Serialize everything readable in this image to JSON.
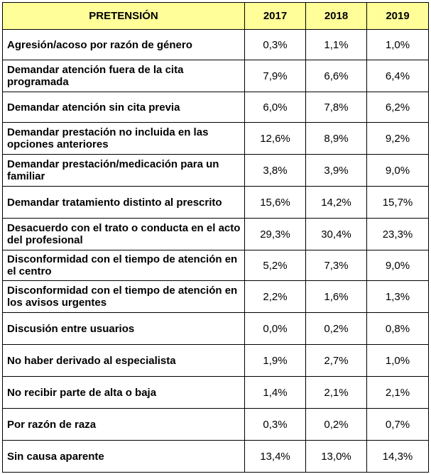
{
  "table": {
    "headers": [
      "PRETENSIÓN",
      "2017",
      "2018",
      "2019"
    ],
    "rows": [
      {
        "pretension": "Agresión/acoso por razón de género",
        "y2017": "0,3%",
        "y2018": "1,1%",
        "y2019": "1,0%"
      },
      {
        "pretension": "Demandar atención fuera de la cita programada",
        "y2017": "7,9%",
        "y2018": "6,6%",
        "y2019": "6,4%"
      },
      {
        "pretension": "Demandar atención sin cita previa",
        "y2017": "6,0%",
        "y2018": "7,8%",
        "y2019": "6,2%"
      },
      {
        "pretension": "Demandar prestación no incluida en las opciones anteriores",
        "y2017": "12,6%",
        "y2018": "8,9%",
        "y2019": "9,2%"
      },
      {
        "pretension": "Demandar prestación/medicación para un familiar",
        "y2017": "3,8%",
        "y2018": "3,9%",
        "y2019": "9,0%"
      },
      {
        "pretension": "Demandar tratamiento distinto al prescrito",
        "y2017": "15,6%",
        "y2018": "14,2%",
        "y2019": "15,7%"
      },
      {
        "pretension": "Desacuerdo con el trato o conducta en el acto del profesional",
        "y2017": "29,3%",
        "y2018": "30,4%",
        "y2019": "23,3%"
      },
      {
        "pretension": "Disconformidad con el tiempo de atención en el centro",
        "y2017": "5,2%",
        "y2018": "7,3%",
        "y2019": "9,0%"
      },
      {
        "pretension": "Disconformidad con el tiempo de atención en los avisos urgentes",
        "y2017": "2,2%",
        "y2018": "1,6%",
        "y2019": "1,3%"
      },
      {
        "pretension": "Discusión entre usuarios",
        "y2017": "0,0%",
        "y2018": "0,2%",
        "y2019": "0,8%"
      },
      {
        "pretension": "No haber derivado al especialista",
        "y2017": "1,9%",
        "y2018": "2,7%",
        "y2019": "1,0%"
      },
      {
        "pretension": "No recibir parte de alta o baja",
        "y2017": "1,4%",
        "y2018": "2,1%",
        "y2019": "2,1%"
      },
      {
        "pretension": "Por razón de raza",
        "y2017": "0,3%",
        "y2018": "0,2%",
        "y2019": "0,7%"
      },
      {
        "pretension": "Sin causa aparente",
        "y2017": "13,4%",
        "y2018": "13,0%",
        "y2019": "14,3%"
      }
    ]
  },
  "colors": {
    "header_bg": "#fffe99",
    "border": "#000000"
  }
}
